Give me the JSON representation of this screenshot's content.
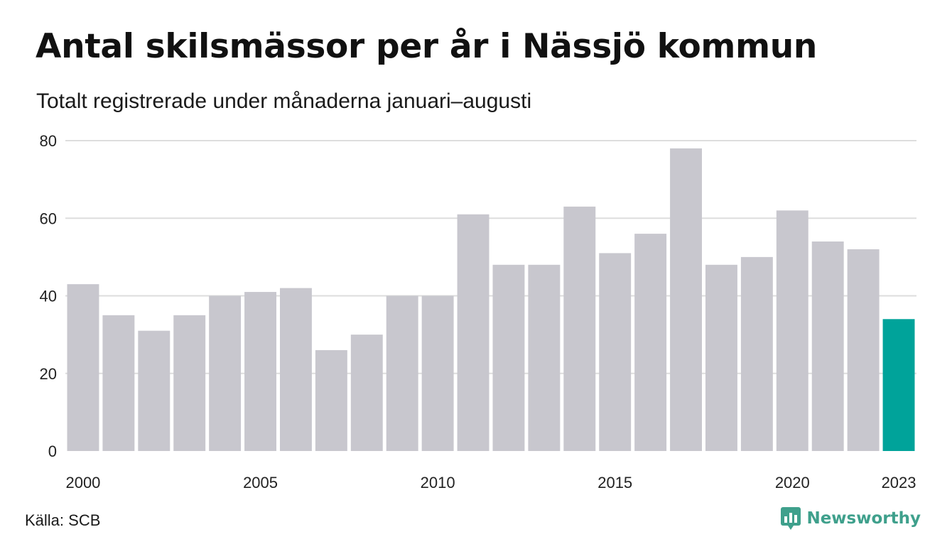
{
  "title": "Antal skilsmässor per år i Nässjö kommun",
  "subtitle": "Totalt registrerade under månaderna januari–augusti",
  "source": "Källa: SCB",
  "brand": "Newsworthy",
  "colors": {
    "bar": "#c8c7ce",
    "highlight": "#00a39a",
    "grid": "#dddddd",
    "brand": "#3fa08c"
  },
  "chart_data": {
    "type": "bar",
    "categories": [
      "2000",
      "2001",
      "2002",
      "2003",
      "2004",
      "2005",
      "2006",
      "2007",
      "2008",
      "2009",
      "2010",
      "2011",
      "2012",
      "2013",
      "2014",
      "2015",
      "2016",
      "2017",
      "2018",
      "2019",
      "2020",
      "2021",
      "2022",
      "2023"
    ],
    "values": [
      43,
      35,
      31,
      35,
      40,
      41,
      42,
      26,
      30,
      40,
      40,
      61,
      48,
      48,
      63,
      51,
      56,
      78,
      48,
      50,
      62,
      54,
      52,
      34
    ],
    "highlight_index": 23,
    "x_tick_labels": [
      "2000",
      "2005",
      "2010",
      "2015",
      "2020",
      "2023"
    ],
    "y_ticks": [
      0,
      20,
      40,
      60,
      80
    ],
    "ylim": [
      0,
      80
    ],
    "grid": true
  }
}
